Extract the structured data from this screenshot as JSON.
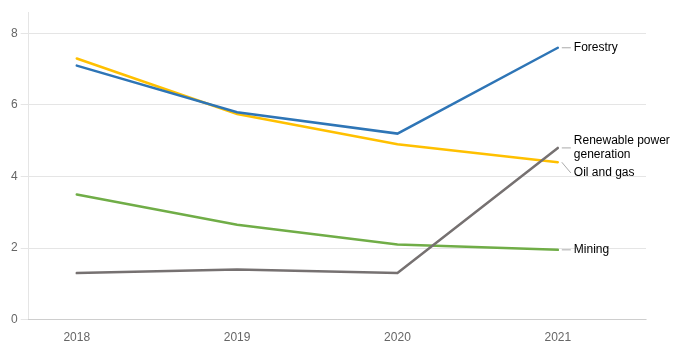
{
  "chart_data": {
    "type": "line",
    "x": [
      2018,
      2019,
      2020,
      2021
    ],
    "series": [
      {
        "name": "Forestry",
        "color": "#2E75B6",
        "values": [
          7.1,
          5.8,
          5.2,
          7.6
        ]
      },
      {
        "name": "Renewable power\ngeneration",
        "color": "#767171",
        "values": [
          1.3,
          1.4,
          1.3,
          4.8
        ]
      },
      {
        "name": "Oil and gas",
        "color": "#FFC000",
        "values": [
          7.3,
          5.75,
          4.9,
          4.4
        ]
      },
      {
        "name": "Mining",
        "color": "#70AD47",
        "values": [
          3.5,
          2.65,
          2.1,
          1.95
        ]
      }
    ],
    "xlim": [
      2017.7,
      2021.55
    ],
    "xticks": [
      2018,
      2019,
      2020,
      2021
    ],
    "ylim": [
      0,
      8.6
    ],
    "yticks": [
      0,
      2,
      4,
      6,
      8
    ],
    "grid": "y"
  }
}
